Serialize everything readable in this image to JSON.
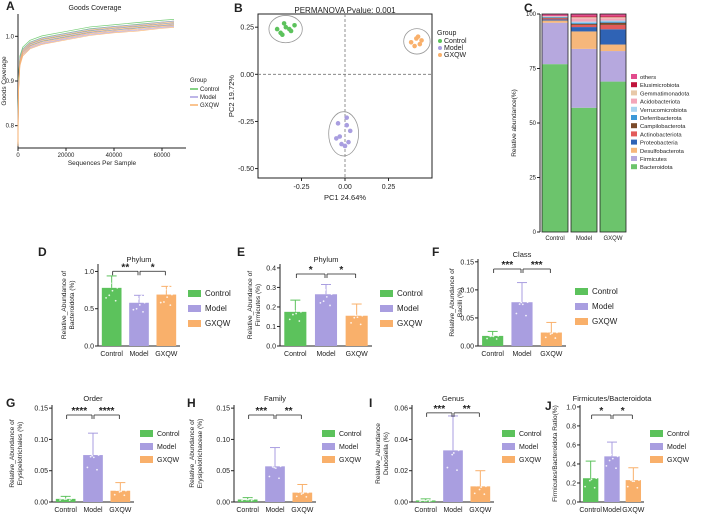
{
  "colors": {
    "control": "#5cc25c",
    "model": "#a99ee0",
    "gxqw": "#f9b06b",
    "axis": "#222222"
  },
  "panels": {
    "A": {
      "letter": "A",
      "title": "Goods Coverage",
      "xlabel": "Sequences Per Sample",
      "ylabel": "Goods Coverage",
      "xticks": [
        "0",
        "20000",
        "40000",
        "60000"
      ],
      "yticks": [
        "0.8",
        "0.9",
        "1.0"
      ],
      "legend_title": "Group",
      "legend": [
        "Control",
        "Model",
        "GXQW"
      ]
    },
    "B": {
      "letter": "B",
      "title": "PERMANOVA Pvalue: 0.001",
      "xlabel": "PC1 24.64%",
      "ylabel": "PC2 19.72%",
      "xticks": [
        "-0.25",
        "0.00",
        "0.25"
      ],
      "yticks": [
        "0.25",
        "0.00",
        "-0.25",
        "-0.50"
      ],
      "legend_title": "Group",
      "legend": [
        "Control",
        "Model",
        "GXQW"
      ]
    },
    "C": {
      "letter": "C",
      "ylabel": "Relative abundance(%)",
      "yticks": [
        "0",
        "25",
        "50",
        "75",
        "100"
      ],
      "groups": [
        "Control",
        "Model",
        "GXQW"
      ]
    },
    "D": {
      "letter": "D",
      "title": "Phylum",
      "ylabel": "Relative_Abundance of Bacteroidota (%)",
      "ylabel_lines": [
        "Relative_Abundance of",
        "Bacteroidota (%)"
      ],
      "yticks": [
        "0.0",
        "0.5",
        "1.0"
      ],
      "sig": [
        "**",
        "*"
      ]
    },
    "E": {
      "letter": "E",
      "title": "Phylum",
      "ylabel": "Relative_Abundance of Firmicutes (%)",
      "ylabel_lines": [
        "Relative_Abundance of",
        "Firmicutes (%)"
      ],
      "yticks": [
        "0.0",
        "0.1",
        "0.2",
        "0.3",
        "0.4"
      ],
      "sig": [
        "*",
        "*"
      ]
    },
    "F": {
      "letter": "F",
      "title": "Class",
      "ylabel": "Relative_Abundance of Bacilli (%)",
      "ylabel_lines": [
        "Relative_Abundance of",
        "Bacilli (%)"
      ],
      "yticks": [
        "0.00",
        "0.05",
        "0.10",
        "0.15"
      ],
      "sig": [
        "***",
        "***"
      ]
    },
    "G": {
      "letter": "G",
      "title": "Order",
      "ylabel": "Relative_Abundance of Erysipelotrichales (%)",
      "ylabel_lines": [
        "Relative_Abundance of",
        "Erysipelotrichales (%)"
      ],
      "yticks": [
        "0.00",
        "0.05",
        "0.10",
        "0.15"
      ],
      "sig": [
        "****",
        "****"
      ]
    },
    "H": {
      "letter": "H",
      "title": "Family",
      "ylabel": "Relative_Abundance of Erysipelotrichaceae (%)",
      "ylabel_lines": [
        "Relative_Abundance of",
        "Erysipelotrichaceae (%)"
      ],
      "yticks": [
        "0.00",
        "0.05",
        "0.10",
        "0.15"
      ],
      "sig": [
        "***",
        "**"
      ]
    },
    "I": {
      "letter": "I",
      "title": "Genus",
      "ylabel": "Relative_Abundance Dubosiella (%)",
      "ylabel_lines": [
        "Relative_Abundance",
        "Dubosiella (%)"
      ],
      "yticks": [
        "0.00",
        "0.02",
        "0.04",
        "0.06"
      ],
      "sig": [
        "***",
        "**"
      ]
    },
    "J": {
      "letter": "J",
      "title": "Firmicutes/Bacteroidota",
      "ylabel": "Firmicutes/Bacteroidota Ratio(%)",
      "ylabel_lines": [
        "Firmicutes/Bacteroidota Ratio(%)"
      ],
      "yticks": [
        "0.0",
        "0.2",
        "0.4",
        "0.6",
        "0.8",
        "1.0"
      ],
      "sig": [
        "*",
        "*"
      ]
    }
  },
  "chart_data": [
    {
      "type": "line",
      "panel": "A",
      "title": "Goods Coverage",
      "xlabel": "Sequences Per Sample",
      "ylabel": "Goods Coverage",
      "xlim": [
        0,
        70000
      ],
      "ylim": [
        0.75,
        1.05
      ],
      "series": [
        {
          "name": "Control",
          "x": [
            0,
            200,
            800,
            2000,
            5000,
            10000,
            20000,
            30000,
            40000,
            50000,
            60000,
            65000
          ],
          "y": [
            0.78,
            0.9,
            0.95,
            0.97,
            0.985,
            0.995,
            1.005,
            1.015,
            1.02,
            1.025,
            1.03,
            1.032
          ]
        },
        {
          "name": "Model",
          "x": [
            0,
            200,
            800,
            2000,
            5000,
            10000,
            20000,
            30000,
            40000,
            50000,
            60000,
            65000
          ],
          "y": [
            0.77,
            0.89,
            0.945,
            0.965,
            0.98,
            0.99,
            1.0,
            1.01,
            1.016,
            1.02,
            1.026,
            1.028
          ]
        },
        {
          "name": "GXQW",
          "x": [
            0,
            200,
            800,
            2000,
            5000,
            10000,
            20000,
            30000,
            40000,
            50000,
            60000,
            65000
          ],
          "y": [
            0.76,
            0.88,
            0.94,
            0.962,
            0.978,
            0.988,
            0.998,
            1.008,
            1.014,
            1.018,
            1.024,
            1.026
          ]
        }
      ]
    },
    {
      "type": "scatter",
      "panel": "B",
      "title": "PERMANOVA Pvalue: 0.001",
      "xlabel": "PC1 24.64%",
      "ylabel": "PC2 19.72%",
      "xlim": [
        -0.5,
        0.5
      ],
      "ylim": [
        -0.55,
        0.32
      ],
      "series": [
        {
          "name": "Control",
          "x": [
            -0.39,
            -0.37,
            -0.34,
            -0.31,
            -0.29,
            -0.35,
            -0.36,
            -0.32
          ],
          "y": [
            0.24,
            0.22,
            0.25,
            0.23,
            0.26,
            0.27,
            0.21,
            0.24
          ]
        },
        {
          "name": "Model",
          "x": [
            -0.04,
            0.01,
            -0.03,
            0.02,
            -0.05,
            0.0,
            0.03,
            -0.02,
            0.01
          ],
          "y": [
            -0.26,
            -0.27,
            -0.33,
            -0.36,
            -0.34,
            -0.38,
            -0.3,
            -0.37,
            -0.23
          ]
        },
        {
          "name": "GXQW",
          "x": [
            0.38,
            0.41,
            0.43,
            0.44,
            0.4,
            0.42
          ],
          "y": [
            0.17,
            0.19,
            0.16,
            0.18,
            0.15,
            0.2
          ]
        }
      ]
    },
    {
      "type": "bar",
      "stacked": true,
      "panel": "C",
      "ylabel": "Relative abundance(%)",
      "ylim": [
        0,
        100
      ],
      "categories": [
        "Control",
        "Model",
        "GXQW"
      ],
      "series": [
        {
          "name": "Bacteroidota",
          "color": "#6cc46c",
          "values": [
            77,
            57,
            69
          ]
        },
        {
          "name": "Firmicutes",
          "color": "#b6a8de",
          "values": [
            19,
            27,
            14
          ]
        },
        {
          "name": "Desulfobacterota",
          "color": "#f6b77b",
          "values": [
            1,
            8,
            3
          ]
        },
        {
          "name": "Proteobacteria",
          "color": "#2f63b5",
          "values": [
            0.5,
            2,
            7
          ]
        },
        {
          "name": "Actinobacteriota",
          "color": "#e25b5b",
          "values": [
            0.5,
            1,
            2
          ]
        },
        {
          "name": "Campilobacterota",
          "color": "#7a4a2a",
          "values": [
            0.3,
            0.5,
            1
          ]
        },
        {
          "name": "Deferribacterota",
          "color": "#3c98d8",
          "values": [
            0.3,
            0.5,
            0.5
          ]
        },
        {
          "name": "Verrucomicrobiota",
          "color": "#a8d4f0",
          "values": [
            0.2,
            0.5,
            0.5
          ]
        },
        {
          "name": "Acidobacteriota",
          "color": "#f4a6b9",
          "values": [
            0.2,
            1.5,
            1
          ]
        },
        {
          "name": "Gemmatimonadota",
          "color": "#e8c8a8",
          "values": [
            0.1,
            0.5,
            0.5
          ]
        },
        {
          "name": "Elusimicrobiota",
          "color": "#c0143c",
          "values": [
            0.1,
            0.5,
            0.5
          ]
        },
        {
          "name": "others",
          "color": "#e24b8c",
          "values": [
            0.8,
            1,
            1
          ]
        }
      ]
    },
    {
      "type": "bar",
      "panel": "D",
      "title": "Phylum",
      "categories": [
        "Control",
        "Model",
        "GXQW"
      ],
      "values": [
        0.78,
        0.58,
        0.69
      ],
      "errors": [
        0.16,
        0.1,
        0.11
      ],
      "ylim": [
        0,
        1.1
      ]
    },
    {
      "type": "bar",
      "panel": "E",
      "title": "Phylum",
      "categories": [
        "Control",
        "Model",
        "GXQW"
      ],
      "values": [
        0.175,
        0.265,
        0.155
      ],
      "errors": [
        0.06,
        0.05,
        0.06
      ],
      "ylim": [
        0,
        0.42
      ]
    },
    {
      "type": "bar",
      "panel": "F",
      "title": "Class",
      "categories": [
        "Control",
        "Model",
        "GXQW"
      ],
      "values": [
        0.018,
        0.078,
        0.024
      ],
      "errors": [
        0.008,
        0.035,
        0.018
      ],
      "ylim": [
        0,
        0.155
      ]
    },
    {
      "type": "bar",
      "panel": "G",
      "title": "Order",
      "categories": [
        "Control",
        "Model",
        "GXQW"
      ],
      "values": [
        0.005,
        0.075,
        0.018
      ],
      "errors": [
        0.004,
        0.035,
        0.013
      ],
      "ylim": [
        0,
        0.155
      ]
    },
    {
      "type": "bar",
      "panel": "H",
      "title": "Family",
      "categories": [
        "Control",
        "Model",
        "GXQW"
      ],
      "values": [
        0.004,
        0.057,
        0.015
      ],
      "errors": [
        0.003,
        0.03,
        0.013
      ],
      "ylim": [
        0,
        0.155
      ]
    },
    {
      "type": "bar",
      "panel": "I",
      "title": "Genus",
      "categories": [
        "Control",
        "Model",
        "GXQW"
      ],
      "values": [
        0.001,
        0.033,
        0.01
      ],
      "errors": [
        0.001,
        0.022,
        0.01
      ],
      "ylim": [
        0,
        0.062
      ]
    },
    {
      "type": "bar",
      "panel": "J",
      "title": "Firmicutes/Bacteroidota",
      "categories": [
        "Control",
        "Model",
        "GXQW"
      ],
      "values": [
        0.25,
        0.48,
        0.23
      ],
      "errors": [
        0.18,
        0.15,
        0.13
      ],
      "ylim": [
        0,
        1.02
      ]
    }
  ]
}
